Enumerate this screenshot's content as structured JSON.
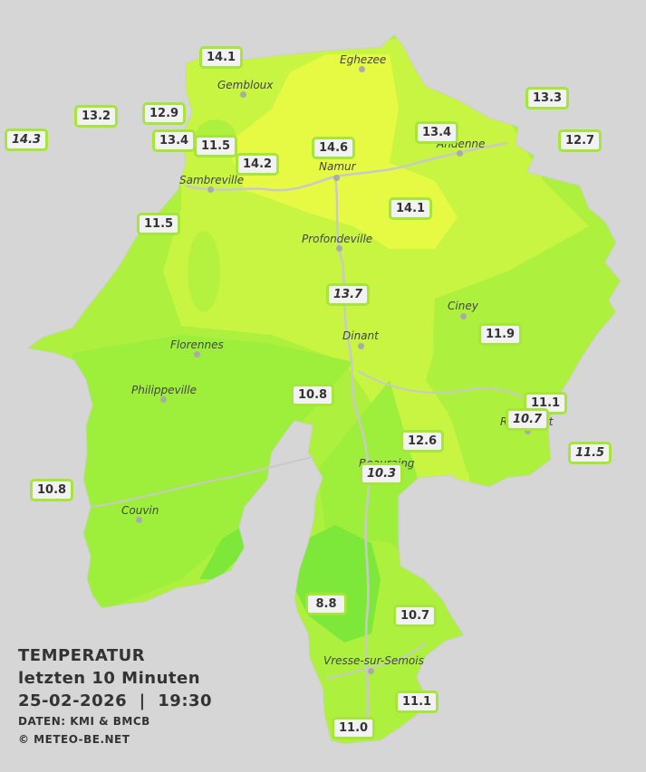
{
  "legend": {
    "title": "TEMPERATUR",
    "period": "letzten 10 Minuten",
    "datetime": "25-02-2026  |  19:30",
    "source": "DATEN: KMI & BMCB",
    "copyright": "© METEO-BE.NET"
  },
  "colors": {
    "background": "#d6d6d6",
    "badge_border": "#a6e63a",
    "temp_9": "#7ee83a",
    "temp_10": "#96ee3c",
    "temp_11": "#aef03e",
    "temp_12": "#c8f542",
    "temp_14": "#e6fa44"
  },
  "towns": [
    {
      "name": "Eghezee"
    },
    {
      "name": "Gembloux"
    },
    {
      "name": "Andenne"
    },
    {
      "name": "Namur"
    },
    {
      "name": "Sambreville"
    },
    {
      "name": "Profondeville"
    },
    {
      "name": "Ciney"
    },
    {
      "name": "Dinant"
    },
    {
      "name": "Florennes"
    },
    {
      "name": "Philippeville"
    },
    {
      "name": "Rochefort"
    },
    {
      "name": "Beauraing"
    },
    {
      "name": "Couvin"
    },
    {
      "name": "Vresse-sur-Semois"
    }
  ],
  "stations": [
    {
      "value": "14.1",
      "italic": false
    },
    {
      "value": "13.2",
      "italic": false
    },
    {
      "value": "12.9",
      "italic": false
    },
    {
      "value": "14.3",
      "italic": true
    },
    {
      "value": "13.4",
      "italic": false
    },
    {
      "value": "11.5",
      "italic": false
    },
    {
      "value": "14.2",
      "italic": false
    },
    {
      "value": "14.6",
      "italic": false
    },
    {
      "value": "13.4",
      "italic": false
    },
    {
      "value": "13.3",
      "italic": false
    },
    {
      "value": "12.7",
      "italic": false
    },
    {
      "value": "11.5",
      "italic": false
    },
    {
      "value": "14.1",
      "italic": false
    },
    {
      "value": "13.7",
      "italic": true
    },
    {
      "value": "11.9",
      "italic": false
    },
    {
      "value": "10.8",
      "italic": false
    },
    {
      "value": "11.1",
      "italic": false
    },
    {
      "value": "10.7",
      "italic": true
    },
    {
      "value": "11.5",
      "italic": true
    },
    {
      "value": "12.6",
      "italic": false
    },
    {
      "value": "10.3",
      "italic": true
    },
    {
      "value": "10.8",
      "italic": false
    },
    {
      "value": "8.8",
      "italic": false
    },
    {
      "value": "10.7",
      "italic": false
    },
    {
      "value": "11.1",
      "italic": false
    },
    {
      "value": "11.0",
      "italic": false
    }
  ]
}
